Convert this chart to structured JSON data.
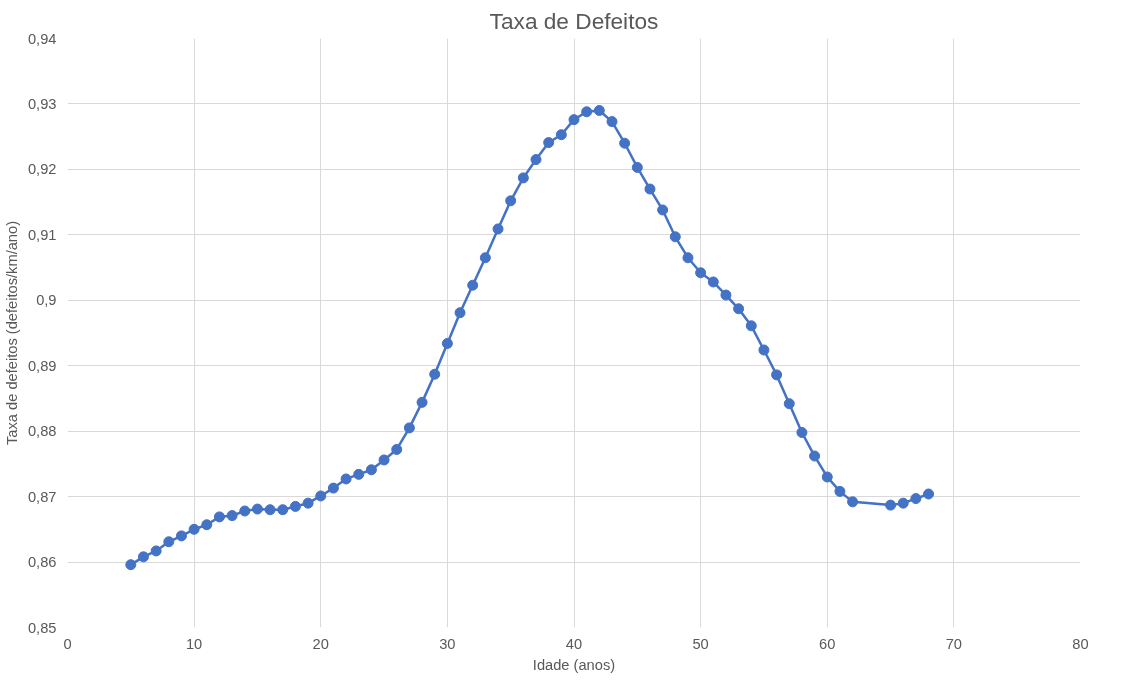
{
  "chart_data": {
    "type": "line",
    "title": "Taxa de Defeitos",
    "xlabel": "Idade (anos)",
    "ylabel": "Taxa de defeitos (defeitos/km/ano)",
    "xlim": [
      0,
      80
    ],
    "xticks": [
      0,
      10,
      20,
      30,
      40,
      50,
      60,
      70,
      80
    ],
    "ylim": [
      0.85,
      0.94
    ],
    "yticks": [
      {
        "value": 0.85,
        "label": "0,85"
      },
      {
        "value": 0.86,
        "label": "0,86"
      },
      {
        "value": 0.87,
        "label": "0,87"
      },
      {
        "value": 0.88,
        "label": "0,88"
      },
      {
        "value": 0.89,
        "label": "0,89"
      },
      {
        "value": 0.9,
        "label": "0,9"
      },
      {
        "value": 0.91,
        "label": "0,91"
      },
      {
        "value": 0.92,
        "label": "0,92"
      },
      {
        "value": 0.93,
        "label": "0,93"
      },
      {
        "value": 0.94,
        "label": "0,94"
      }
    ],
    "grid": true,
    "marker": "circle",
    "line_style": "solid",
    "series": [
      {
        "color": "#4472c4",
        "x": [
          5,
          6,
          7,
          8,
          9,
          10,
          11,
          12,
          13,
          14,
          15,
          16,
          17,
          18,
          19,
          20,
          21,
          22,
          23,
          24,
          25,
          26,
          27,
          28,
          29,
          30,
          31,
          32,
          33,
          34,
          35,
          36,
          37,
          38,
          39,
          40,
          41,
          42,
          43,
          44,
          45,
          46,
          47,
          48,
          49,
          50,
          51,
          52,
          53,
          54,
          55,
          56,
          57,
          58,
          59,
          60,
          61,
          62,
          65,
          66,
          67,
          68
        ],
        "values": [
          0.8596,
          0.8608,
          0.8617,
          0.8631,
          0.864,
          0.865,
          0.8657,
          0.8669,
          0.8671,
          0.8678,
          0.8681,
          0.868,
          0.868,
          0.8685,
          0.869,
          0.8701,
          0.8713,
          0.8727,
          0.8734,
          0.8741,
          0.8756,
          0.8772,
          0.8805,
          0.8844,
          0.8887,
          0.8934,
          0.8981,
          0.9023,
          0.9065,
          0.9109,
          0.9152,
          0.9187,
          0.9215,
          0.9241,
          0.9253,
          0.9276,
          0.9288,
          0.929,
          0.9273,
          0.924,
          0.9203,
          0.917,
          0.9138,
          0.9097,
          0.9065,
          0.9042,
          0.9028,
          0.9008,
          0.8987,
          0.8961,
          0.8924,
          0.8886,
          0.8842,
          0.8798,
          0.8762,
          0.873,
          0.8708,
          0.8692,
          0.8687,
          0.869,
          0.8697,
          0.8704
        ]
      }
    ]
  }
}
